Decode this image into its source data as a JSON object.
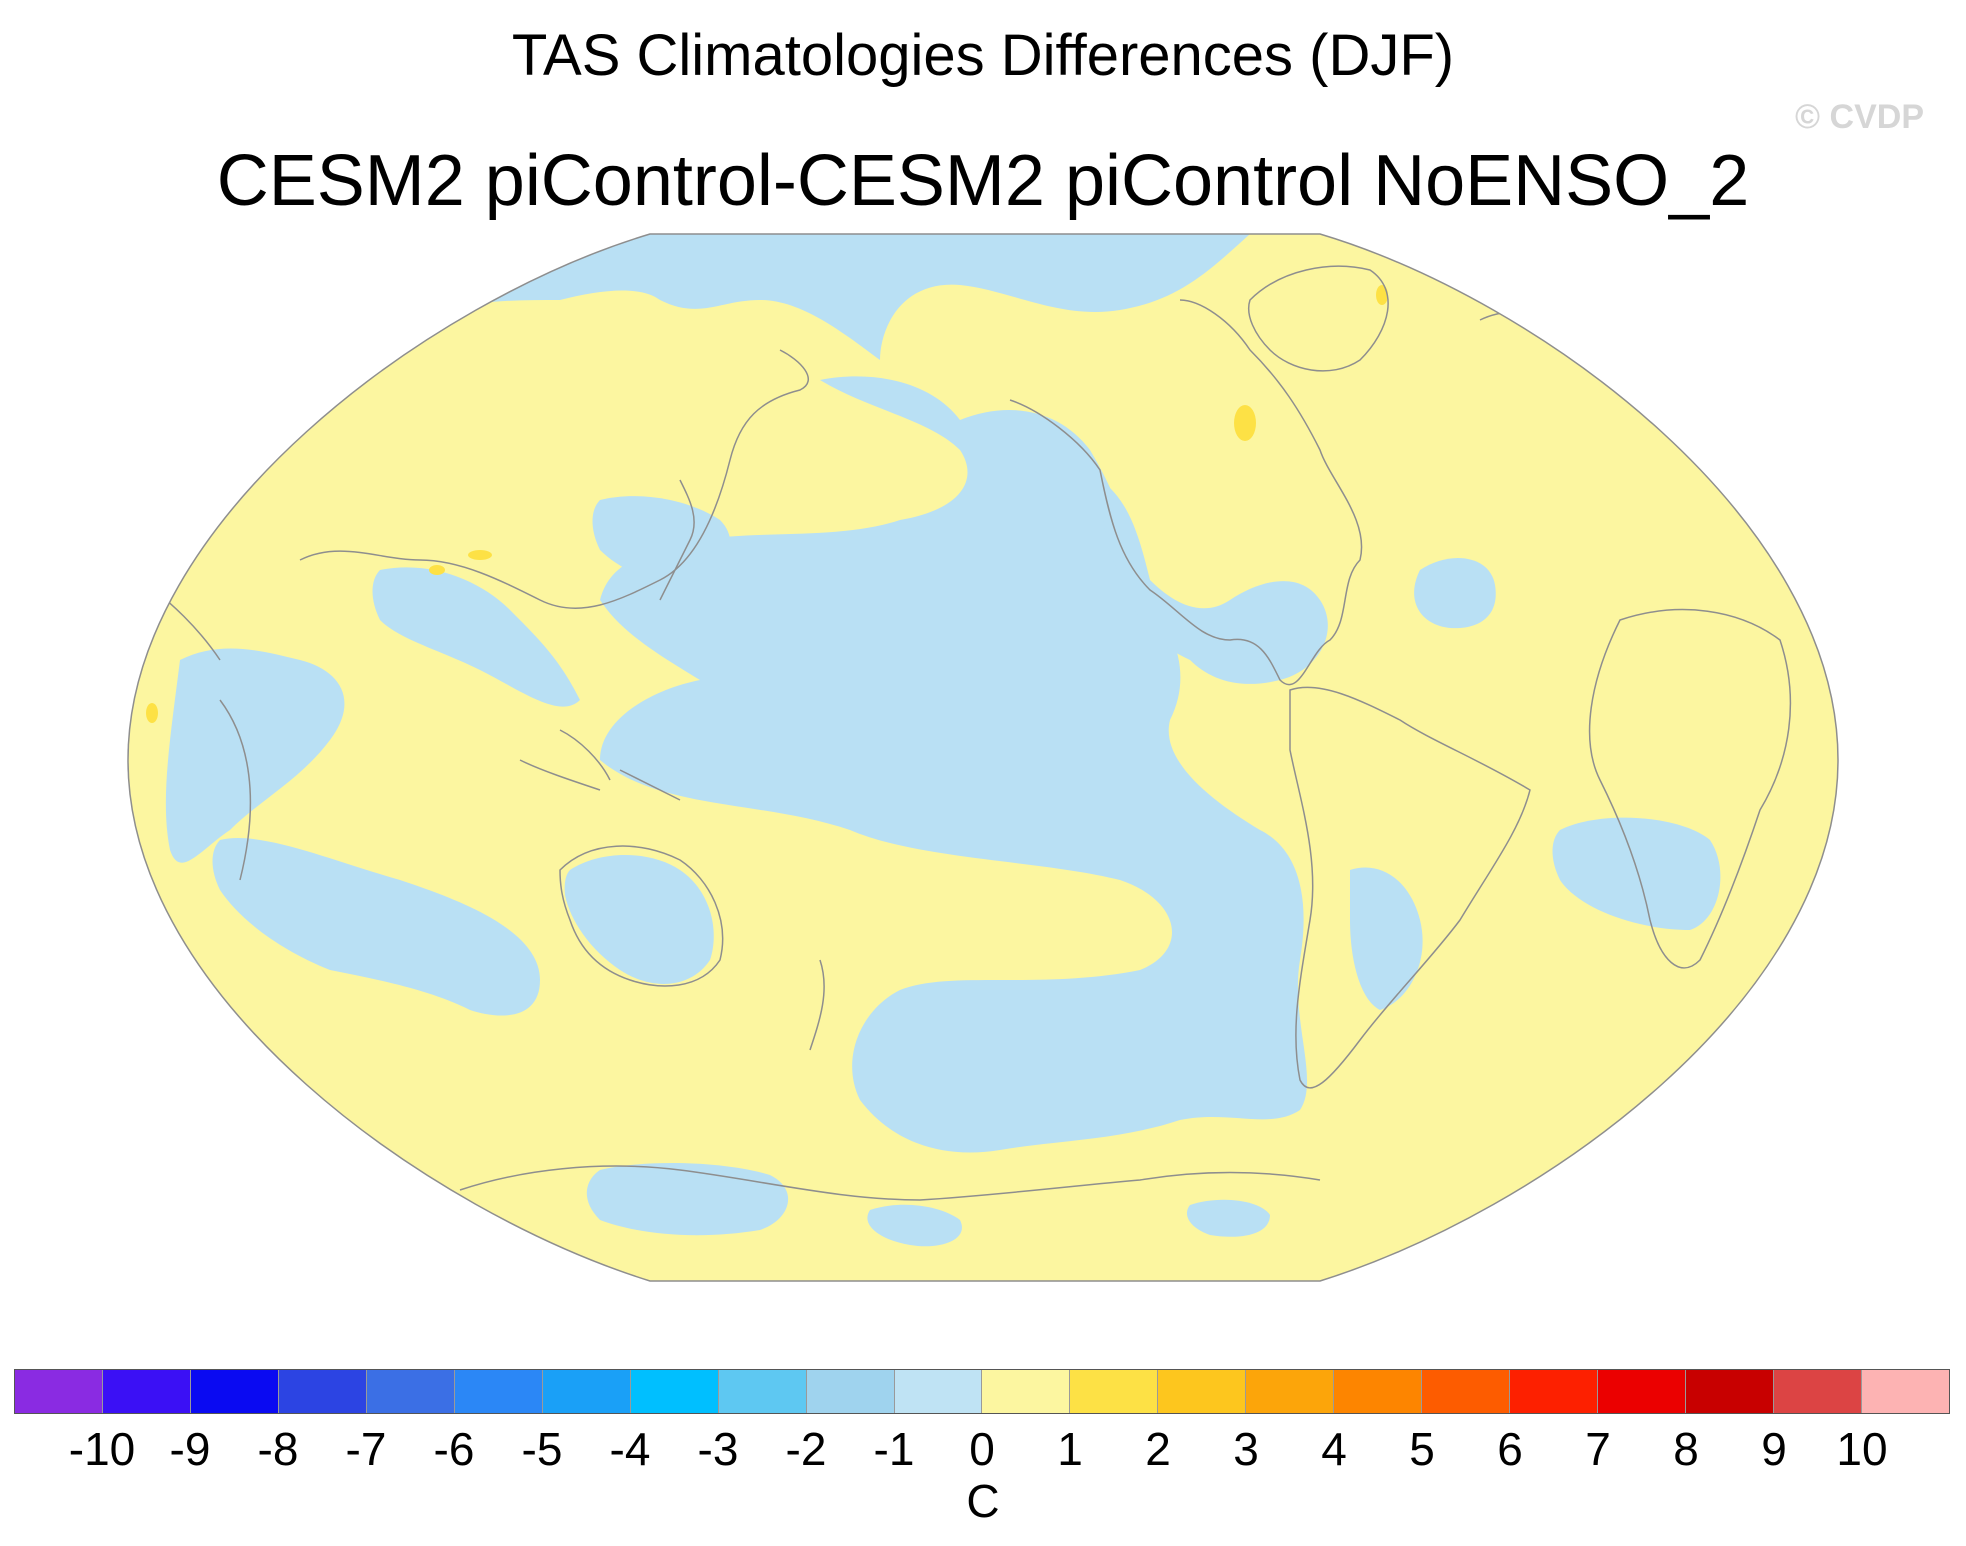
{
  "title": "TAS Climatologies Differences (DJF)",
  "subtitle": "CESM2 piControl-CESM2 piControl NoENSO_2",
  "credit": "© CVDP",
  "map": {
    "projection": "robinson",
    "variable": "TAS",
    "season": "DJF",
    "ocean_land_base_color": "#fcf6a0",
    "negative_color": "#b9e0f4",
    "contour_color": "#8e8e8e"
  },
  "colorbar": {
    "unit": "C",
    "levels": [
      "-10",
      "-9",
      "-8",
      "-7",
      "-6",
      "-5",
      "-4",
      "-3",
      "-2",
      "-1",
      "0",
      "1",
      "2",
      "3",
      "4",
      "5",
      "6",
      "7",
      "8",
      "9",
      "10"
    ],
    "colors": [
      "#8a2be2",
      "#3b10f5",
      "#0a0af2",
      "#2c44e3",
      "#3b6fe5",
      "#2b87f6",
      "#1aa0f7",
      "#00bfff",
      "#5ec8f2",
      "#9fd3ee",
      "#bfe3f4",
      "#fcf6a0",
      "#fde145",
      "#fdc61e",
      "#fca50a",
      "#fd8500",
      "#fd5c00",
      "#fd2000",
      "#eb0000",
      "#c80000",
      "#dc4444",
      "#fdb3b3"
    ]
  }
}
